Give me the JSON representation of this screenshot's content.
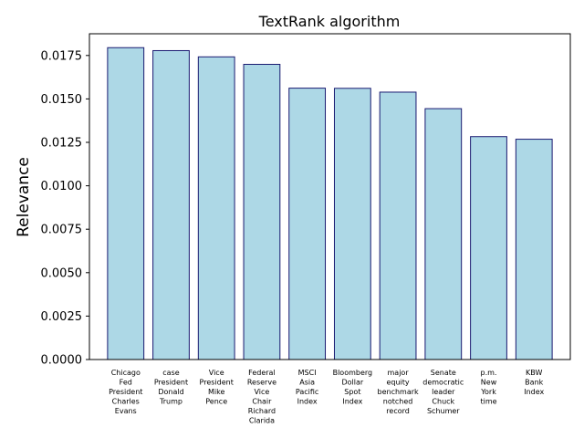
{
  "chart_data": {
    "type": "bar",
    "title": "TextRank algorithm",
    "xlabel": "",
    "ylabel": "Relevance",
    "ylim": [
      0,
      0.01875
    ],
    "yticks": [
      "0.0000",
      "0.0025",
      "0.0050",
      "0.0075",
      "0.0100",
      "0.0125",
      "0.0150",
      "0.0175"
    ],
    "grid": false,
    "bar_color": "#add8e6",
    "edge_color": "#191970",
    "categories": [
      [
        "Chicago",
        "Fed",
        "President",
        "Charles",
        "Evans"
      ],
      [
        "case",
        "President",
        "Donald",
        "Trump"
      ],
      [
        "Vice",
        "President",
        "Mike",
        "Pence"
      ],
      [
        "Federal",
        "Reserve",
        "Vice",
        "Chair",
        "Richard",
        "Clarida"
      ],
      [
        "MSCI",
        "Asia",
        "Pacific",
        "Index"
      ],
      [
        "Bloomberg",
        "Dollar",
        "Spot",
        "Index"
      ],
      [
        "major",
        "equity",
        "benchmark",
        "notched",
        "record"
      ],
      [
        "Senate",
        "democratic",
        "leader",
        "Chuck",
        "Schumer"
      ],
      [
        "p.m.",
        "New",
        "York",
        "time"
      ],
      [
        "KBW",
        "Bank",
        "Index"
      ]
    ],
    "values": [
      0.01795,
      0.01778,
      0.01742,
      0.01699,
      0.01562,
      0.01561,
      0.01539,
      0.01444,
      0.01283,
      0.01268
    ]
  }
}
